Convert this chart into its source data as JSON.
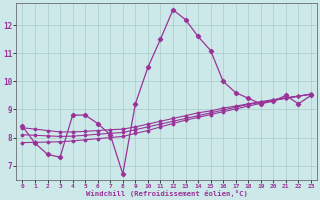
{
  "xlabel": "Windchill (Refroidissement éolien,°C)",
  "bg_color": "#cce8e8",
  "line_color": "#993399",
  "grid_color": "#aacccc",
  "x": [
    0,
    1,
    2,
    3,
    4,
    5,
    6,
    7,
    8,
    9,
    10,
    11,
    12,
    13,
    14,
    15,
    16,
    17,
    18,
    19,
    20,
    21,
    22,
    23
  ],
  "y_main": [
    8.4,
    7.8,
    7.4,
    7.3,
    8.8,
    8.8,
    8.5,
    8.1,
    6.7,
    9.2,
    10.5,
    11.5,
    12.55,
    12.2,
    11.6,
    11.1,
    10.0,
    9.6,
    9.4,
    9.2,
    9.3,
    9.5,
    9.2,
    9.5
  ],
  "y_line2": [
    8.35,
    8.3,
    8.25,
    8.2,
    8.2,
    8.22,
    8.25,
    8.28,
    8.3,
    8.38,
    8.48,
    8.58,
    8.68,
    8.78,
    8.88,
    8.95,
    9.05,
    9.12,
    9.2,
    9.28,
    9.35,
    9.42,
    9.48,
    9.55
  ],
  "y_line3": [
    8.1,
    8.08,
    8.06,
    8.04,
    8.05,
    8.08,
    8.12,
    8.15,
    8.18,
    8.28,
    8.38,
    8.48,
    8.58,
    8.68,
    8.78,
    8.88,
    8.98,
    9.08,
    9.18,
    9.25,
    9.32,
    9.4,
    9.47,
    9.54
  ],
  "y_line4": [
    7.82,
    7.83,
    7.84,
    7.85,
    7.88,
    7.92,
    7.96,
    8.0,
    8.04,
    8.15,
    8.25,
    8.38,
    8.5,
    8.62,
    8.72,
    8.82,
    8.92,
    9.02,
    9.12,
    9.22,
    9.32,
    9.4,
    9.47,
    9.55
  ],
  "ylim": [
    6.5,
    12.8
  ],
  "xlim": [
    -0.5,
    23.5
  ],
  "yticks": [
    7,
    8,
    9,
    10,
    11,
    12
  ],
  "xticks": [
    0,
    1,
    2,
    3,
    4,
    5,
    6,
    7,
    8,
    9,
    10,
    11,
    12,
    13,
    14,
    15,
    16,
    17,
    18,
    19,
    20,
    21,
    22,
    23
  ]
}
